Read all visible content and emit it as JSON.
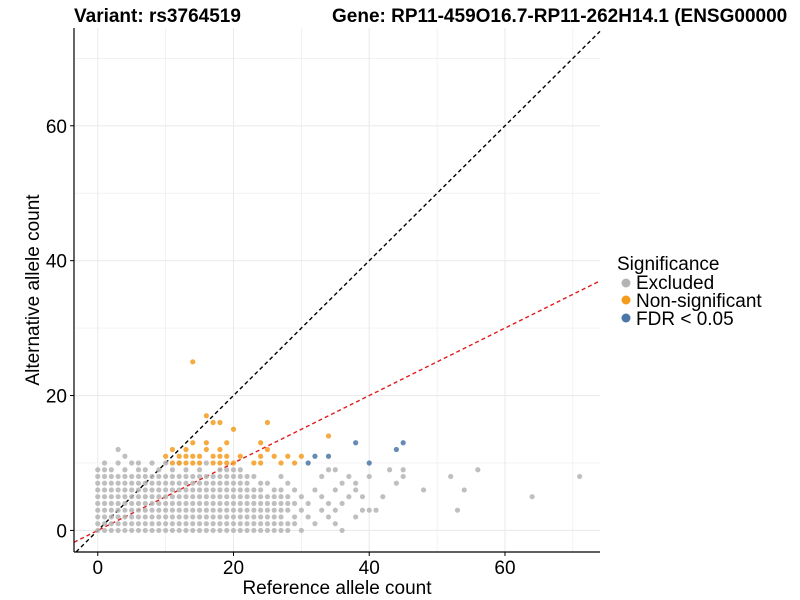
{
  "header": {
    "variant": "Variant: rs3764519",
    "gene": "Gene: RP11-459O16.7-RP11-262H14.1 (ENSG00000"
  },
  "legend": {
    "title": "Significance",
    "items": [
      {
        "label": "Excluded",
        "color": "#b4b4b4",
        "icon": "dot"
      },
      {
        "label": "Non-significant",
        "color": "#f39c1e",
        "icon": "dot"
      },
      {
        "label": "FDR < 0.05",
        "color": "#4a77a8",
        "icon": "dot"
      }
    ]
  },
  "chart_data": {
    "type": "scatter",
    "title": "Variant: rs3764519    Gene: RP11-459O16.7-RP11-262H14.1 (ENSG0000",
    "xlabel": "Reference allele count",
    "ylabel": "Alternative allele count",
    "xlim": [
      -3.5,
      74
    ],
    "ylim": [
      -3.2,
      74.5
    ],
    "xticks": [
      0,
      20,
      40,
      60
    ],
    "yticks": [
      0,
      20,
      40,
      60
    ],
    "grid": true,
    "reference_lines": [
      {
        "name": "identity",
        "slope": 1,
        "intercept": 0,
        "color": "#000000",
        "style": "dashed"
      },
      {
        "name": "fitted",
        "slope": 0.5,
        "intercept": 0,
        "color": "#e31a1c",
        "style": "dashed"
      }
    ],
    "series": [
      {
        "name": "Excluded",
        "color": "#b4b4b4",
        "grid_block": {
          "x_range": [
            0,
            21
          ],
          "y_range": [
            0,
            8
          ]
        },
        "points": [
          [
            0,
            9
          ],
          [
            1,
            9
          ],
          [
            1,
            10
          ],
          [
            2,
            9
          ],
          [
            3,
            10
          ],
          [
            3,
            12
          ],
          [
            4,
            9
          ],
          [
            4,
            11
          ],
          [
            5,
            10
          ],
          [
            6,
            9
          ],
          [
            6,
            10
          ],
          [
            7,
            9
          ],
          [
            8,
            10
          ],
          [
            9,
            9
          ],
          [
            10,
            10
          ],
          [
            11,
            9
          ],
          [
            12,
            10
          ],
          [
            13,
            9
          ],
          [
            15,
            9
          ],
          [
            16,
            10
          ],
          [
            18,
            9
          ],
          [
            19,
            9
          ],
          [
            20,
            9
          ],
          [
            21,
            9
          ],
          [
            22,
            0
          ],
          [
            22,
            1
          ],
          [
            22,
            2
          ],
          [
            22,
            3
          ],
          [
            22,
            4
          ],
          [
            22,
            5
          ],
          [
            22,
            6
          ],
          [
            22,
            7
          ],
          [
            22,
            8
          ],
          [
            23,
            0
          ],
          [
            23,
            1
          ],
          [
            23,
            2
          ],
          [
            23,
            3
          ],
          [
            23,
            4
          ],
          [
            23,
            5
          ],
          [
            23,
            6
          ],
          [
            23,
            8
          ],
          [
            24,
            0
          ],
          [
            24,
            1
          ],
          [
            24,
            2
          ],
          [
            24,
            3
          ],
          [
            24,
            4
          ],
          [
            24,
            5
          ],
          [
            24,
            6
          ],
          [
            24,
            7
          ],
          [
            25,
            0
          ],
          [
            25,
            1
          ],
          [
            25,
            2
          ],
          [
            25,
            3
          ],
          [
            25,
            4
          ],
          [
            25,
            5
          ],
          [
            25,
            7
          ],
          [
            26,
            0
          ],
          [
            26,
            1
          ],
          [
            26,
            2
          ],
          [
            26,
            3
          ],
          [
            26,
            4
          ],
          [
            26,
            5
          ],
          [
            26,
            6
          ],
          [
            27,
            0
          ],
          [
            27,
            1
          ],
          [
            27,
            2
          ],
          [
            27,
            3
          ],
          [
            27,
            4
          ],
          [
            27,
            5
          ],
          [
            27,
            6
          ],
          [
            27,
            8
          ],
          [
            28,
            0
          ],
          [
            28,
            1
          ],
          [
            28,
            3
          ],
          [
            28,
            4
          ],
          [
            28,
            5
          ],
          [
            28,
            7
          ],
          [
            29,
            1
          ],
          [
            29,
            2
          ],
          [
            29,
            4
          ],
          [
            29,
            6
          ],
          [
            30,
            0
          ],
          [
            30,
            3
          ],
          [
            30,
            5
          ],
          [
            31,
            2
          ],
          [
            31,
            4
          ],
          [
            32,
            1
          ],
          [
            32,
            6
          ],
          [
            33,
            3
          ],
          [
            33,
            5
          ],
          [
            33,
            8
          ],
          [
            34,
            2
          ],
          [
            34,
            4
          ],
          [
            34,
            9
          ],
          [
            35,
            1
          ],
          [
            35,
            3
          ],
          [
            35,
            6
          ],
          [
            35,
            9
          ],
          [
            36,
            0
          ],
          [
            36,
            4
          ],
          [
            36,
            7
          ],
          [
            37,
            5
          ],
          [
            37,
            8
          ],
          [
            38,
            2
          ],
          [
            38,
            6
          ],
          [
            38,
            7
          ],
          [
            39,
            3
          ],
          [
            39,
            5
          ],
          [
            40,
            3
          ],
          [
            40,
            8
          ],
          [
            41,
            3
          ],
          [
            42,
            5
          ],
          [
            43,
            9
          ],
          [
            44,
            7
          ],
          [
            45,
            8
          ],
          [
            45,
            9
          ],
          [
            48,
            6
          ],
          [
            52,
            8
          ],
          [
            53,
            3
          ],
          [
            54,
            6
          ],
          [
            56,
            9
          ],
          [
            64,
            5
          ],
          [
            71,
            8
          ]
        ]
      },
      {
        "name": "Non-significant",
        "color": "#f39c1e",
        "points": [
          [
            10,
            11
          ],
          [
            11,
            10
          ],
          [
            11,
            12
          ],
          [
            12,
            10
          ],
          [
            12,
            11
          ],
          [
            13,
            10
          ],
          [
            13,
            11
          ],
          [
            13,
            12
          ],
          [
            14,
            10
          ],
          [
            14,
            11
          ],
          [
            14,
            13
          ],
          [
            14,
            25
          ],
          [
            15,
            10
          ],
          [
            15,
            11
          ],
          [
            16,
            12
          ],
          [
            16,
            13
          ],
          [
            16,
            17
          ],
          [
            17,
            10
          ],
          [
            17,
            11
          ],
          [
            17,
            16
          ],
          [
            18,
            10
          ],
          [
            18,
            11
          ],
          [
            18,
            12
          ],
          [
            18,
            16
          ],
          [
            19,
            10
          ],
          [
            19,
            11
          ],
          [
            19,
            13
          ],
          [
            20,
            10
          ],
          [
            20,
            15
          ],
          [
            21,
            11
          ],
          [
            23,
            10
          ],
          [
            24,
            10
          ],
          [
            24,
            11
          ],
          [
            24,
            13
          ],
          [
            25,
            12
          ],
          [
            25,
            16
          ],
          [
            26,
            11
          ],
          [
            27,
            10
          ],
          [
            28,
            11
          ],
          [
            29,
            10
          ],
          [
            30,
            11
          ],
          [
            34,
            14
          ]
        ]
      },
      {
        "name": "FDR < 0.05",
        "color": "#4a77a8",
        "points": [
          [
            31,
            10
          ],
          [
            32,
            11
          ],
          [
            34,
            11
          ],
          [
            38,
            13
          ],
          [
            40,
            10
          ],
          [
            44,
            12
          ],
          [
            45,
            13
          ]
        ]
      }
    ]
  }
}
